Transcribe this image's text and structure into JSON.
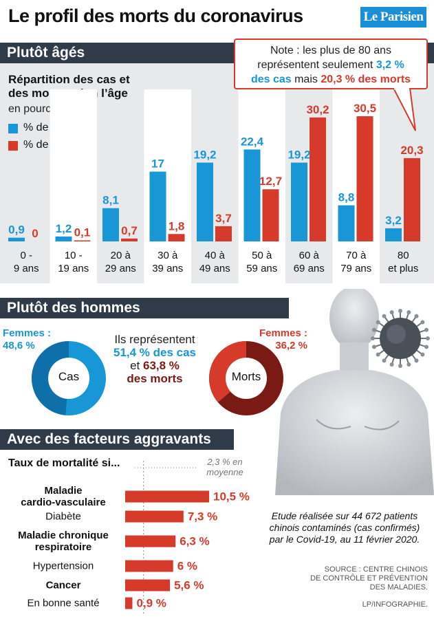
{
  "title": "Le profil des morts du coronavirus",
  "logo": "Le Parisien",
  "colors": {
    "cases": "#1896d6",
    "deaths": "#d63a2a",
    "band": "#2f3b48"
  },
  "section1": {
    "header": "Plutôt âgés",
    "subtitle_line1": "Répartition des cas et",
    "subtitle_line2": "des morts selon l’âge",
    "unit": "en pourcentage",
    "legend_cases": "% de cas",
    "legend_deaths": "% de morts",
    "note_line1": "Note : les plus de 80 ans",
    "note_line2_pre": "représentent seulement ",
    "note_line2_val": "3,2 %",
    "note_line3_val": "des cas",
    "note_line3_mid": " mais ",
    "note_line3_val2": "20,3 % des morts"
  },
  "chart_data": [
    {
      "type": "bar",
      "title": "Répartition des cas et des morts selon l’âge",
      "ylabel": "en pourcentage",
      "categories": [
        [
          "0 -",
          "9 ans"
        ],
        [
          "10 -",
          "19 ans"
        ],
        [
          "20 à",
          "29 ans"
        ],
        [
          "30 à",
          "39 ans"
        ],
        [
          "40 à",
          "49 ans"
        ],
        [
          "50 à",
          "59 ans"
        ],
        [
          "60 à",
          "69 ans"
        ],
        [
          "70 à",
          "79 ans"
        ],
        [
          "80",
          "et plus"
        ]
      ],
      "series": [
        {
          "name": "% de cas",
          "values": [
            0.9,
            1.2,
            8.1,
            17,
            19.2,
            22.4,
            19.2,
            8.8,
            3.2
          ],
          "labels": [
            "0,9",
            "1,2",
            "8,1",
            "17",
            "19,2",
            "22,4",
            "19,2",
            "8,8",
            "3,2"
          ]
        },
        {
          "name": "% de morts",
          "values": [
            0,
            0.1,
            0.7,
            1.8,
            3.7,
            12.7,
            30.2,
            30.5,
            20.3
          ],
          "labels": [
            "0",
            "0,1",
            "0,7",
            "1,8",
            "3,7",
            "12,7",
            "30,2",
            "30,5",
            "20,3"
          ]
        }
      ],
      "ylim": [
        0,
        30.5
      ]
    },
    {
      "type": "pie",
      "title": "Cas",
      "slices": [
        {
          "label": "Femmes",
          "value": 48.6
        },
        {
          "label": "Hommes",
          "value": 51.4
        }
      ]
    },
    {
      "type": "pie",
      "title": "Morts",
      "slices": [
        {
          "label": "Femmes",
          "value": 36.2
        },
        {
          "label": "Hommes",
          "value": 63.8
        }
      ]
    },
    {
      "type": "bar",
      "title": "Taux de mortalité si...",
      "categories": [
        [
          "Maladie",
          "cardio-vasculaire"
        ],
        [
          "Diabète"
        ],
        [
          "Maladie chronique",
          "respiratoire"
        ],
        [
          "Hypertension"
        ],
        [
          "Cancer"
        ],
        [
          "En bonne santé"
        ]
      ],
      "bold": [
        true,
        false,
        true,
        false,
        true,
        false
      ],
      "values": [
        10.5,
        7.3,
        6.3,
        6,
        5.6,
        0.9
      ],
      "labels": [
        "10,5 %",
        "7,3 %",
        "6,3 %",
        "6 %",
        "5,6 %",
        "0,9 %"
      ],
      "reference": 2.3,
      "xlim": [
        0,
        10.5
      ]
    }
  ],
  "section2": {
    "header": "Plutôt des hommes",
    "femmes_cas_label": "Femmes :",
    "femmes_cas_value": "48,6 %",
    "femmes_morts_label": "Femmes :",
    "femmes_morts_value": "36,2 %",
    "cas_label": "Cas",
    "morts_label": "Morts",
    "center_line1": "Ils représentent",
    "center_line2": "51,4 % des cas",
    "center_line3_pre": "et ",
    "center_line3_val": "63,8 %",
    "center_line4": "des morts",
    "pie_cases_colors": [
      "#0f6fa8",
      "#1896d6"
    ],
    "pie_deaths_colors": [
      "#d63a2a",
      "#7a1a14"
    ]
  },
  "section3": {
    "header": "Avec des facteurs aggravants",
    "subtitle": "Taux de mortalité si...",
    "avg_line1": "2,3 % en",
    "avg_line2": "moyenne",
    "study_line1": "Etude réalisée sur 44 672 patients",
    "study_line2": "chinois contaminés (cas confirmés)",
    "study_line3": "par le Covid-19, au 11 février 2020.",
    "source_line1": "SOURCE : CENTRE CHINOIS",
    "source_line2": "DE CONTRÔLE ET PRÉVENTION",
    "source_line3": "DES MALADIES.",
    "credit": "LP/INFOGRAPHIE."
  }
}
